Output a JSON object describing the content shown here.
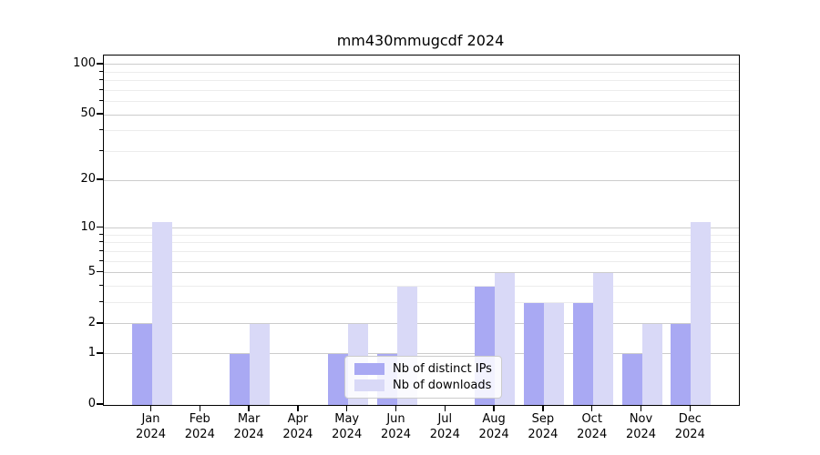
{
  "chart_data": {
    "type": "bar",
    "title": "mm430mmugcdf 2024",
    "categories": [
      "Jan",
      "Feb",
      "Mar",
      "Apr",
      "May",
      "Jun",
      "Jul",
      "Aug",
      "Sep",
      "Oct",
      "Nov",
      "Dec"
    ],
    "tick_year": "2024",
    "series": [
      {
        "name": "Nb of distinct IPs",
        "color": "#a9a9f3",
        "values": [
          2,
          0,
          1,
          0,
          1,
          1,
          0,
          4,
          3,
          3,
          1,
          2
        ]
      },
      {
        "name": "Nb of downloads",
        "color": "#d9d9f7",
        "values": [
          11,
          0,
          2,
          0,
          2,
          4,
          0,
          5,
          3,
          5,
          2,
          11
        ]
      }
    ],
    "yticks": [
      0,
      1,
      2,
      5,
      10,
      20,
      50,
      100
    ],
    "minor_yticks": [
      3,
      4,
      6,
      7,
      8,
      9,
      30,
      40,
      60,
      70,
      80,
      90
    ],
    "scale": "log1p",
    "ylim": [
      0,
      113
    ],
    "grid": "on",
    "legend_position": "lower-center-inside",
    "colors": {
      "major_grid": "#cccccc",
      "minor_grid": "#ececec",
      "spine": "#000000",
      "text": "#000000",
      "background": "#ffffff"
    }
  }
}
